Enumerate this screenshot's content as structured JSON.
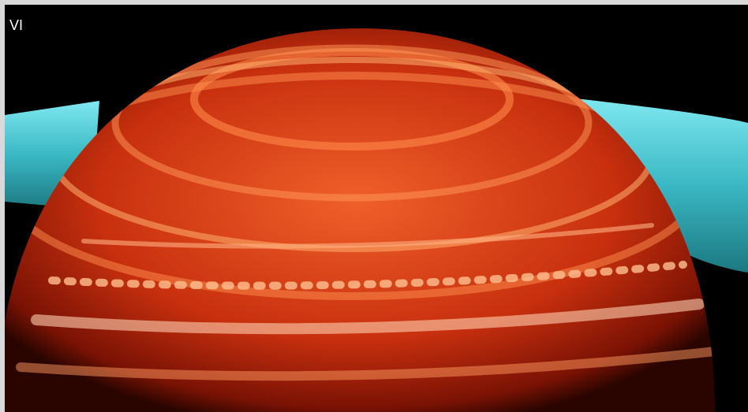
{
  "image": {
    "label": "VI"
  }
}
